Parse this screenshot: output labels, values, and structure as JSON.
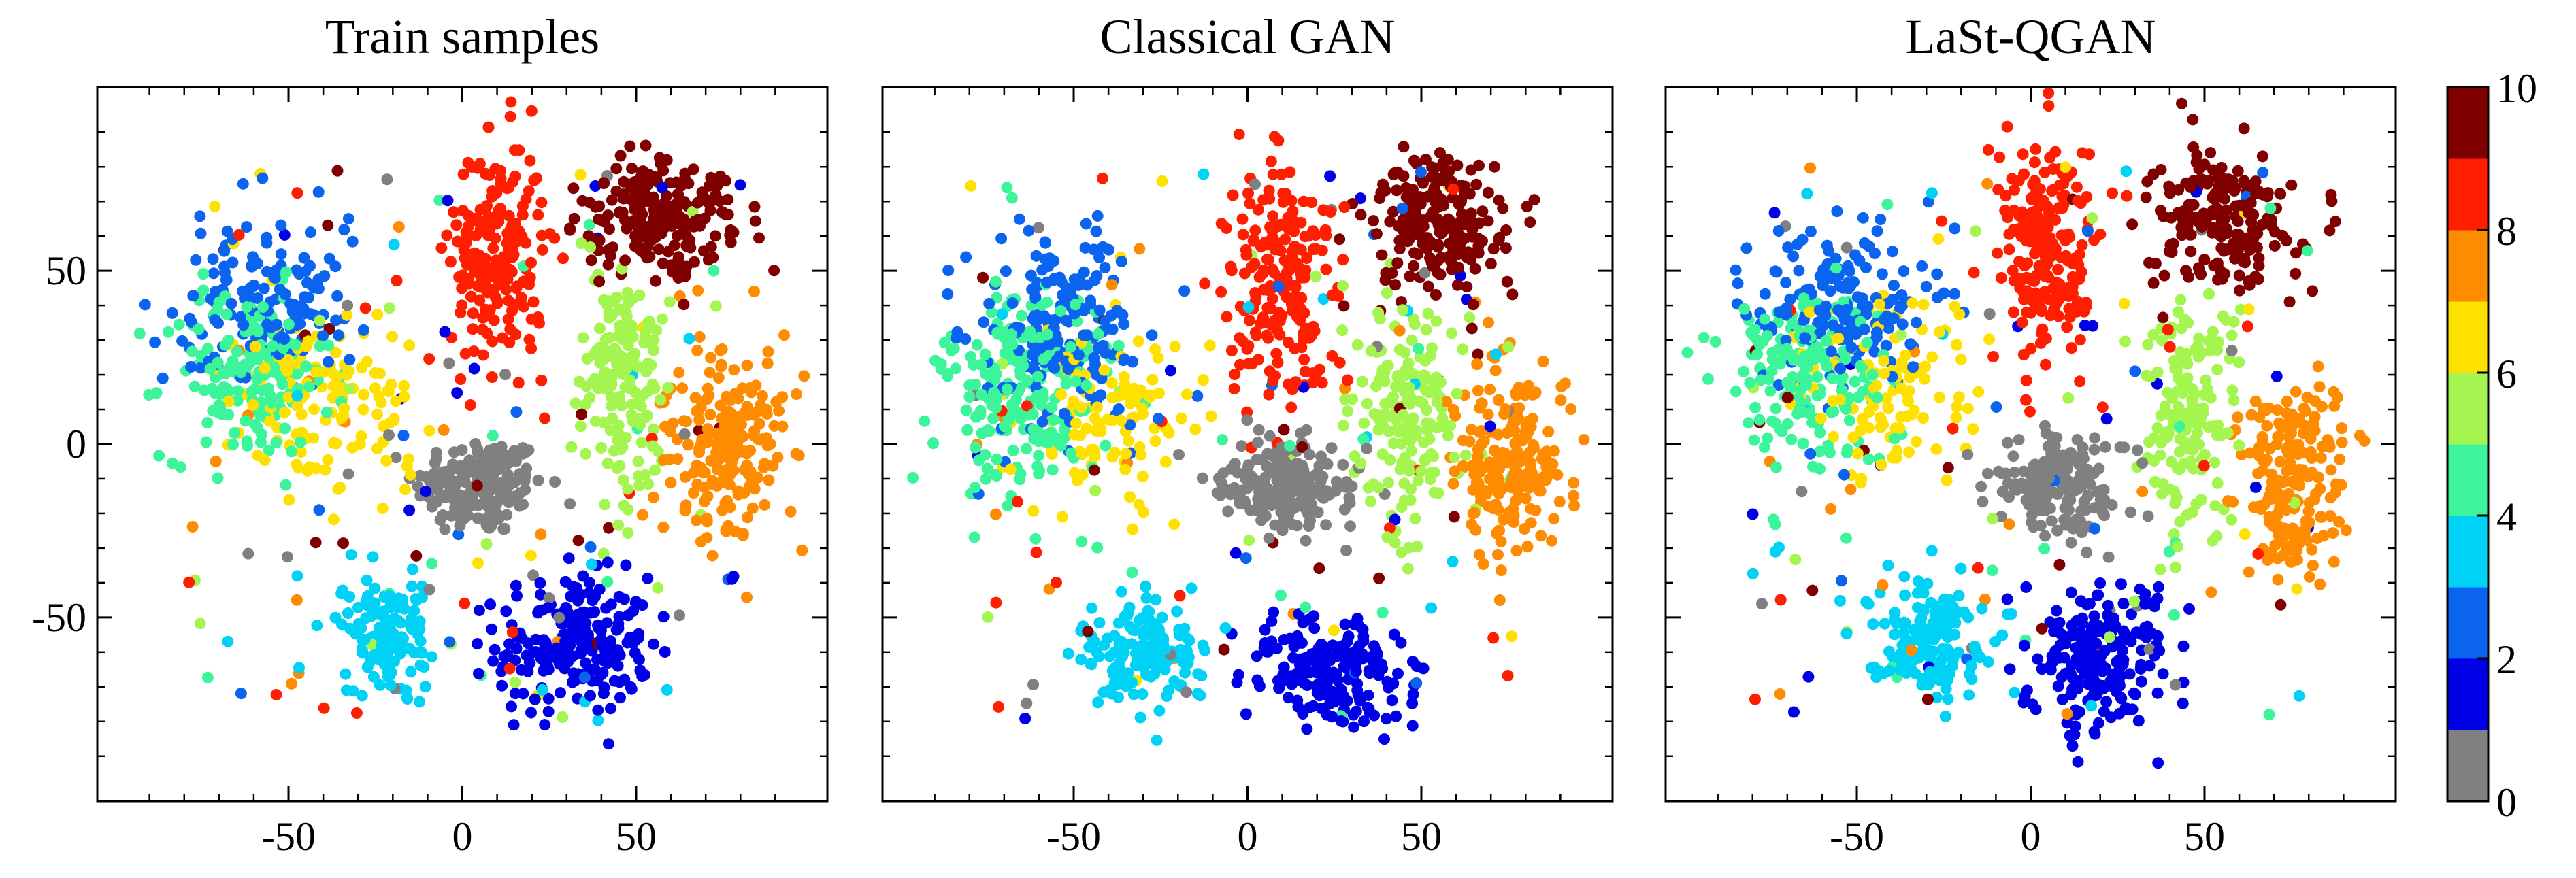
{
  "figure": {
    "colorbar": {
      "ticks": [
        "0",
        "2",
        "4",
        "6",
        "8",
        "10"
      ],
      "colors": [
        "#808080",
        "#0000e6",
        "#0a64f0",
        "#00d2f5",
        "#3cf59b",
        "#a5f550",
        "#ffe100",
        "#ff8c00",
        "#ff1e00",
        "#800000"
      ]
    }
  },
  "chart_data": [
    {
      "type": "scatter",
      "title": "Train samples",
      "xlabel": "",
      "ylabel": "",
      "xlim": [
        -105,
        105
      ],
      "ylim": [
        -103,
        103
      ],
      "xticks": [
        -50,
        0,
        50
      ],
      "yticks": [
        -50,
        0,
        50
      ],
      "xtick_labels": [
        "-50",
        "0",
        "50"
      ],
      "ytick_labels": [
        "-50",
        "0",
        "50"
      ],
      "grid": false,
      "color_by": "class label (0-9)",
      "clusters": [
        {
          "class": 0,
          "center": [
            5,
            -12
          ],
          "spread": [
            17,
            13
          ],
          "n": 180
        },
        {
          "class": 1,
          "center": [
            32,
            -58
          ],
          "spread": [
            20,
            18
          ],
          "n": 210
        },
        {
          "class": 2,
          "center": [
            -58,
            42
          ],
          "spread": [
            22,
            20
          ],
          "n": 150
        },
        {
          "class": 3,
          "center": [
            -22,
            -55
          ],
          "spread": [
            12,
            14
          ],
          "n": 140
        },
        {
          "class": 4,
          "center": [
            -62,
            20
          ],
          "spread": [
            22,
            22
          ],
          "n": 160
        },
        {
          "class": 5,
          "center": [
            46,
            20
          ],
          "spread": [
            12,
            30
          ],
          "n": 170
        },
        {
          "class": 6,
          "center": [
            -38,
            15
          ],
          "spread": [
            25,
            25
          ],
          "n": 130
        },
        {
          "class": 7,
          "center": [
            77,
            0
          ],
          "spread": [
            15,
            25
          ],
          "n": 210
        },
        {
          "class": 8,
          "center": [
            10,
            55
          ],
          "spread": [
            12,
            30
          ],
          "n": 210
        },
        {
          "class": 9,
          "center": [
            58,
            65
          ],
          "spread": [
            20,
            15
          ],
          "n": 210
        }
      ]
    },
    {
      "type": "scatter",
      "title": "Classical GAN",
      "xlabel": "",
      "ylabel": "",
      "xlim": [
        -105,
        105
      ],
      "ylim": [
        -103,
        103
      ],
      "xticks": [
        -50,
        0,
        50
      ],
      "yticks": [
        -50,
        0,
        50
      ],
      "xtick_labels": [
        "-50",
        "0",
        "50"
      ],
      "ytick_labels": [
        "-50",
        "0",
        "50"
      ],
      "grid": false,
      "color_by": "class label (0-9)",
      "clusters": [
        {
          "class": 0,
          "center": [
            10,
            -12
          ],
          "spread": [
            17,
            12
          ],
          "n": 180
        },
        {
          "class": 1,
          "center": [
            25,
            -65
          ],
          "spread": [
            20,
            15
          ],
          "n": 190
        },
        {
          "class": 2,
          "center": [
            -55,
            35
          ],
          "spread": [
            22,
            24
          ],
          "n": 180
        },
        {
          "class": 3,
          "center": [
            -30,
            -60
          ],
          "spread": [
            15,
            14
          ],
          "n": 140
        },
        {
          "class": 4,
          "center": [
            -65,
            15
          ],
          "spread": [
            22,
            25
          ],
          "n": 200
        },
        {
          "class": 5,
          "center": [
            45,
            10
          ],
          "spread": [
            14,
            30
          ],
          "n": 170
        },
        {
          "class": 6,
          "center": [
            -40,
            10
          ],
          "spread": [
            25,
            25
          ],
          "n": 110
        },
        {
          "class": 7,
          "center": [
            75,
            -5
          ],
          "spread": [
            15,
            25
          ],
          "n": 190
        },
        {
          "class": 8,
          "center": [
            10,
            45
          ],
          "spread": [
            13,
            32
          ],
          "n": 200
        },
        {
          "class": 9,
          "center": [
            55,
            65
          ],
          "spread": [
            18,
            18
          ],
          "n": 200
        }
      ]
    },
    {
      "type": "scatter",
      "title": "LaSt-QGAN",
      "xlabel": "",
      "ylabel": "",
      "xlim": [
        -105,
        105
      ],
      "ylim": [
        -103,
        103
      ],
      "xticks": [
        -50,
        0,
        50
      ],
      "yticks": [
        -50,
        0,
        50
      ],
      "xtick_labels": [
        "-50",
        "0",
        "50"
      ],
      "ytick_labels": [
        "-50",
        "0",
        "50"
      ],
      "grid": false,
      "color_by": "class label (0-9)",
      "clusters": [
        {
          "class": 0,
          "center": [
            8,
            -12
          ],
          "spread": [
            17,
            12
          ],
          "n": 170
        },
        {
          "class": 1,
          "center": [
            20,
            -60
          ],
          "spread": [
            20,
            18
          ],
          "n": 210
        },
        {
          "class": 2,
          "center": [
            -55,
            40
          ],
          "spread": [
            22,
            22
          ],
          "n": 170
        },
        {
          "class": 3,
          "center": [
            -30,
            -55
          ],
          "spread": [
            15,
            15
          ],
          "n": 150
        },
        {
          "class": 4,
          "center": [
            -65,
            20
          ],
          "spread": [
            22,
            25
          ],
          "n": 170
        },
        {
          "class": 5,
          "center": [
            45,
            10
          ],
          "spread": [
            13,
            30
          ],
          "n": 150
        },
        {
          "class": 6,
          "center": [
            -40,
            15
          ],
          "spread": [
            25,
            25
          ],
          "n": 110
        },
        {
          "class": 7,
          "center": [
            75,
            -10
          ],
          "spread": [
            15,
            25
          ],
          "n": 190
        },
        {
          "class": 8,
          "center": [
            5,
            55
          ],
          "spread": [
            13,
            30
          ],
          "n": 200
        },
        {
          "class": 9,
          "center": [
            55,
            65
          ],
          "spread": [
            18,
            18
          ],
          "n": 190
        }
      ]
    }
  ]
}
